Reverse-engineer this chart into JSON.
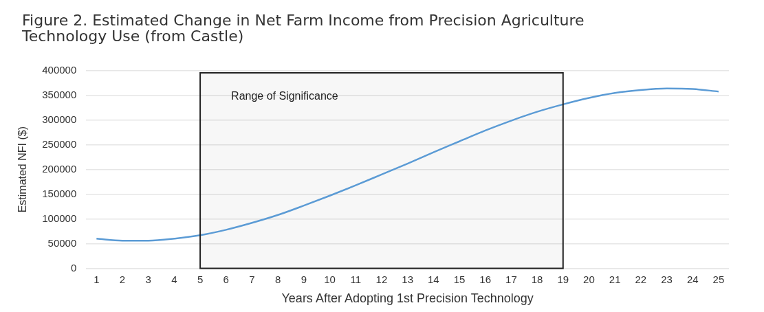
{
  "chart_data": {
    "type": "line",
    "title": "Figure 2. Estimated Change in Net Farm Income from Precision Agriculture Technology Use (from Castle)",
    "xlabel": "Years After Adopting 1st Precision Technology",
    "ylabel": "Estimated NFI ($)",
    "x": [
      1,
      2,
      3,
      4,
      5,
      6,
      7,
      8,
      9,
      10,
      11,
      12,
      13,
      14,
      15,
      16,
      17,
      18,
      19,
      20,
      21,
      22,
      23,
      24,
      25
    ],
    "series": [
      {
        "color": "#5b9bd5",
        "values": [
          60000,
          56000,
          56000,
          60000,
          67000,
          78000,
          92000,
          108000,
          127000,
          147000,
          168000,
          190000,
          212000,
          235000,
          257000,
          279000,
          299000,
          317000,
          332000,
          345000,
          355000,
          361000,
          364000,
          363000,
          358000
        ]
      }
    ],
    "xlim": [
      0.6,
      25.4
    ],
    "xticks": [
      1,
      2,
      3,
      4,
      5,
      6,
      7,
      8,
      9,
      10,
      11,
      12,
      13,
      14,
      15,
      16,
      17,
      18,
      19,
      20,
      21,
      22,
      23,
      24,
      25
    ],
    "ylim": [
      0,
      400000
    ],
    "yticks": [
      0,
      50000,
      100000,
      150000,
      200000,
      250000,
      300000,
      350000,
      400000
    ],
    "grid": "y",
    "legend": false,
    "marker": "none",
    "line_style": "solid",
    "bands": [
      {
        "axis": "x",
        "from": 5,
        "to": 19,
        "label": "Range of Significance",
        "color": "#222222"
      }
    ]
  }
}
